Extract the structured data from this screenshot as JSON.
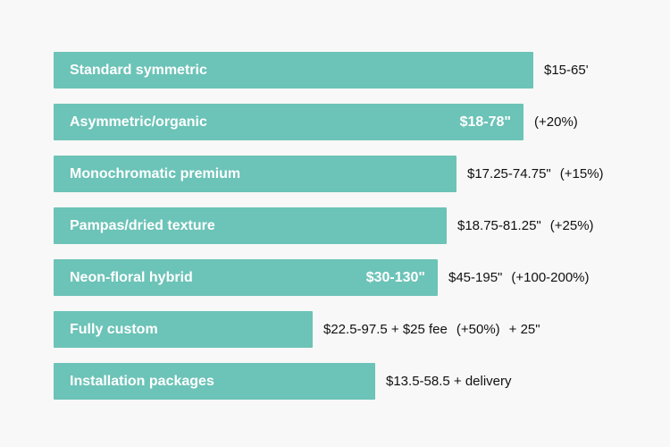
{
  "chart_data": {
    "type": "bar",
    "orientation": "horizontal",
    "title": "",
    "xlabel": "",
    "ylabel": "",
    "grid": false,
    "legend": "none",
    "bar_color": "#6cc3b7",
    "categories": [
      "Standard symmetric",
      "Asymmetric/organic",
      "Monochromatic premium",
      "Pampas/dried texture",
      "Neon-floral hybrid",
      "Fully custom",
      "Installation packages"
    ],
    "values": [
      1.0,
      0.98,
      0.84,
      0.82,
      0.8,
      0.54,
      0.67
    ],
    "inside_labels": [
      "",
      "$18-78\"",
      "",
      "",
      "$30-130\"",
      "",
      ""
    ],
    "outside_labels": [
      [
        "$15-65'"
      ],
      [
        "(+20%)"
      ],
      [
        "$17.25-74.75\"",
        "(+15%)"
      ],
      [
        "$18.75-81.25\"",
        "(+25%)"
      ],
      [
        "$45-195\"",
        "(+100-200%)"
      ],
      [
        "$22.5-97.5 + $25 fee",
        "(+50%)",
        "+ 25\""
      ],
      [
        "$13.5-58.5 + delivery"
      ]
    ]
  }
}
